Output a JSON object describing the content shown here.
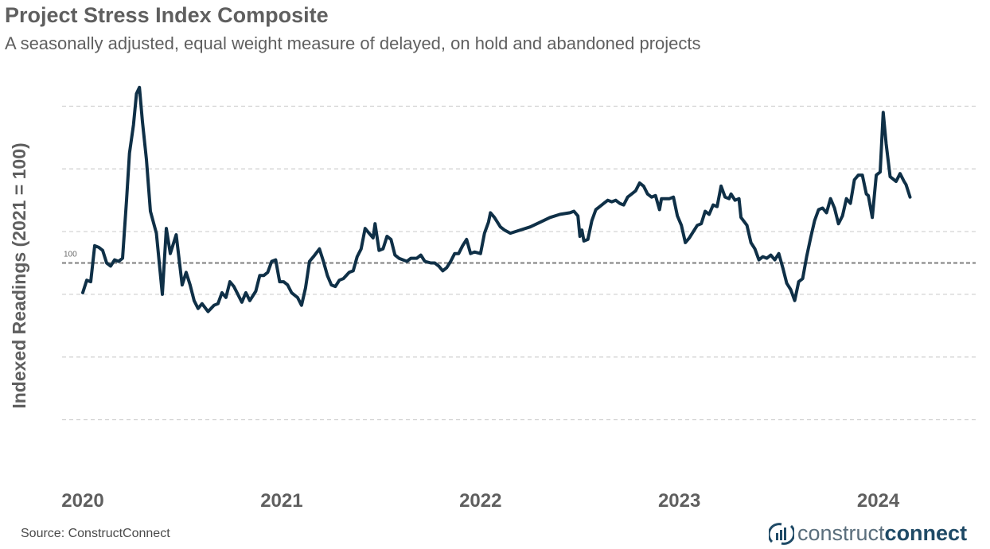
{
  "header": {
    "title": "Project Stress Index Composite",
    "subtitle": "A seasonally adjusted, equal weight measure of delayed, on hold and abandoned projects"
  },
  "footer": {
    "source": "Source: ConstructConnect",
    "logo_text_light": "construct",
    "logo_text_bold": "connect"
  },
  "colors": {
    "line": "#0f3047",
    "grid": "#cfcfcf",
    "baseline": "#8c8c8c",
    "text": "#5f5f5f"
  },
  "chart_data": {
    "type": "line",
    "ylabel": "Indexed Readings (2021 = 100)",
    "baseline_label": "100",
    "x_tick_labels": [
      "2020",
      "2021",
      "2022",
      "2023",
      "2024"
    ],
    "x_ticks": [
      2020,
      2021,
      2022,
      2023,
      2024
    ],
    "xlim": [
      2020,
      2024.45
    ],
    "ylim": [
      40,
      160
    ],
    "gridlines": [
      50,
      70,
      90,
      110,
      130,
      150
    ],
    "baseline": 100,
    "series": [
      {
        "values": [
          [
            2020.0,
            90.5
          ],
          [
            2020.02,
            94.5
          ],
          [
            2020.04,
            94.0
          ],
          [
            2020.06,
            105.5
          ],
          [
            2020.08,
            105.0
          ],
          [
            2020.1,
            104.0
          ],
          [
            2020.12,
            100.0
          ],
          [
            2020.14,
            99.0
          ],
          [
            2020.16,
            101.0
          ],
          [
            2020.18,
            100.5
          ],
          [
            2020.2,
            101.5
          ],
          [
            2020.22,
            120.0
          ],
          [
            2020.235,
            135.0
          ],
          [
            2020.255,
            144.0
          ],
          [
            2020.27,
            154.0
          ],
          [
            2020.285,
            156.0
          ],
          [
            2020.3,
            145.0
          ],
          [
            2020.32,
            133.0
          ],
          [
            2020.34,
            116.5
          ],
          [
            2020.37,
            109.5
          ],
          [
            2020.4,
            90.0
          ],
          [
            2020.42,
            111.0
          ],
          [
            2020.44,
            103.0
          ],
          [
            2020.47,
            109.0
          ],
          [
            2020.5,
            93.0
          ],
          [
            2020.52,
            97.0
          ],
          [
            2020.54,
            93.0
          ],
          [
            2020.56,
            88.0
          ],
          [
            2020.58,
            85.5
          ],
          [
            2020.6,
            87.0
          ],
          [
            2020.63,
            84.5
          ],
          [
            2020.66,
            86.5
          ],
          [
            2020.68,
            87.0
          ],
          [
            2020.7,
            90.5
          ],
          [
            2020.72,
            89.0
          ],
          [
            2020.74,
            94.0
          ],
          [
            2020.76,
            92.5
          ],
          [
            2020.8,
            87.5
          ],
          [
            2020.82,
            90.5
          ],
          [
            2020.84,
            88.0
          ],
          [
            2020.87,
            91.0
          ],
          [
            2020.89,
            96.0
          ],
          [
            2020.91,
            96.0
          ],
          [
            2020.93,
            97.0
          ],
          [
            2020.95,
            100.5
          ],
          [
            2020.97,
            101.0
          ],
          [
            2020.99,
            94.0
          ],
          [
            2021.01,
            94.0
          ],
          [
            2021.03,
            93.0
          ],
          [
            2021.05,
            90.5
          ],
          [
            2021.08,
            89.0
          ],
          [
            2021.1,
            86.5
          ],
          [
            2021.12,
            92.0
          ],
          [
            2021.14,
            100.5
          ],
          [
            2021.16,
            102.0
          ],
          [
            2021.19,
            104.5
          ],
          [
            2021.21,
            100.5
          ],
          [
            2021.23,
            96.0
          ],
          [
            2021.25,
            93.0
          ],
          [
            2021.27,
            92.5
          ],
          [
            2021.29,
            94.5
          ],
          [
            2021.31,
            95.0
          ],
          [
            2021.34,
            97.0
          ],
          [
            2021.36,
            97.5
          ],
          [
            2021.38,
            102.0
          ],
          [
            2021.4,
            104.5
          ],
          [
            2021.42,
            111.0
          ],
          [
            2021.44,
            109.5
          ],
          [
            2021.46,
            108.0
          ],
          [
            2021.47,
            112.5
          ],
          [
            2021.49,
            104.0
          ],
          [
            2021.51,
            104.5
          ],
          [
            2021.53,
            108.5
          ],
          [
            2021.55,
            107.5
          ],
          [
            2021.57,
            102.5
          ],
          [
            2021.59,
            101.5
          ],
          [
            2021.63,
            100.5
          ],
          [
            2021.65,
            101.5
          ],
          [
            2021.68,
            101.5
          ],
          [
            2021.7,
            102.5
          ],
          [
            2021.72,
            100.5
          ],
          [
            2021.75,
            100.0
          ],
          [
            2021.77,
            100.0
          ],
          [
            2021.79,
            99.0
          ],
          [
            2021.81,
            97.5
          ],
          [
            2021.83,
            98.5
          ],
          [
            2021.85,
            100.5
          ],
          [
            2021.87,
            103.0
          ],
          [
            2021.89,
            103.0
          ],
          [
            2021.91,
            105.5
          ],
          [
            2021.93,
            107.5
          ],
          [
            2021.95,
            103.0
          ],
          [
            2021.97,
            103.5
          ],
          [
            2022.0,
            103.0
          ],
          [
            2022.02,
            109.5
          ],
          [
            2022.04,
            113.0
          ],
          [
            2022.05,
            116.0
          ],
          [
            2022.07,
            114.5
          ],
          [
            2022.1,
            111.5
          ],
          [
            2022.12,
            110.5
          ],
          [
            2022.15,
            109.5
          ],
          [
            2022.2,
            110.5
          ],
          [
            2022.25,
            111.5
          ],
          [
            2022.3,
            113.0
          ],
          [
            2022.35,
            114.5
          ],
          [
            2022.4,
            115.5
          ],
          [
            2022.45,
            116.0
          ],
          [
            2022.47,
            116.5
          ],
          [
            2022.49,
            115.0
          ],
          [
            2022.5,
            108.5
          ],
          [
            2022.51,
            110.5
          ],
          [
            2022.52,
            107.0
          ],
          [
            2022.54,
            107.5
          ],
          [
            2022.56,
            113.5
          ],
          [
            2022.58,
            117.0
          ],
          [
            2022.6,
            118.0
          ],
          [
            2022.62,
            119.0
          ],
          [
            2022.64,
            120.0
          ],
          [
            2022.66,
            119.5
          ],
          [
            2022.68,
            120.0
          ],
          [
            2022.7,
            119.0
          ],
          [
            2022.72,
            118.5
          ],
          [
            2022.74,
            121.0
          ],
          [
            2022.76,
            122.0
          ],
          [
            2022.78,
            123.0
          ],
          [
            2022.8,
            125.5
          ],
          [
            2022.82,
            124.5
          ],
          [
            2022.84,
            122.0
          ],
          [
            2022.86,
            121.0
          ],
          [
            2022.88,
            121.5
          ],
          [
            2022.9,
            117.0
          ],
          [
            2022.91,
            120.5
          ],
          [
            2022.93,
            120.5
          ],
          [
            2022.95,
            120.5
          ],
          [
            2022.97,
            121.0
          ],
          [
            2022.99,
            115.0
          ],
          [
            2023.01,
            112.0
          ],
          [
            2023.03,
            106.5
          ],
          [
            2023.05,
            108.0
          ],
          [
            2023.07,
            110.0
          ],
          [
            2023.09,
            112.0
          ],
          [
            2023.11,
            112.5
          ],
          [
            2023.13,
            116.5
          ],
          [
            2023.15,
            115.5
          ],
          [
            2023.17,
            118.5
          ],
          [
            2023.19,
            118.0
          ],
          [
            2023.21,
            124.5
          ],
          [
            2023.23,
            121.0
          ],
          [
            2023.25,
            120.5
          ],
          [
            2023.26,
            122.0
          ],
          [
            2023.28,
            120.0
          ],
          [
            2023.3,
            120.5
          ],
          [
            2023.31,
            114.5
          ],
          [
            2023.34,
            112.0
          ],
          [
            2023.36,
            106.5
          ],
          [
            2023.38,
            104.5
          ],
          [
            2023.4,
            101.0
          ],
          [
            2023.42,
            102.0
          ],
          [
            2023.44,
            101.5
          ],
          [
            2023.46,
            102.5
          ],
          [
            2023.48,
            101.0
          ],
          [
            2023.5,
            103.0
          ],
          [
            2023.52,
            98.5
          ],
          [
            2023.54,
            93.5
          ],
          [
            2023.56,
            91.5
          ],
          [
            2023.58,
            88.0
          ],
          [
            2023.6,
            94.0
          ],
          [
            2023.62,
            95.0
          ],
          [
            2023.64,
            102.0
          ],
          [
            2023.66,
            108.0
          ],
          [
            2023.68,
            113.5
          ],
          [
            2023.7,
            117.0
          ],
          [
            2023.72,
            117.5
          ],
          [
            2023.74,
            116.0
          ],
          [
            2023.76,
            120.5
          ],
          [
            2023.78,
            117.5
          ],
          [
            2023.8,
            112.5
          ],
          [
            2023.82,
            115.0
          ],
          [
            2023.84,
            120.5
          ],
          [
            2023.86,
            119.0
          ],
          [
            2023.88,
            126.5
          ],
          [
            2023.9,
            128.0
          ],
          [
            2023.92,
            128.0
          ],
          [
            2023.94,
            122.0
          ],
          [
            2023.95,
            121.5
          ],
          [
            2023.97,
            114.5
          ],
          [
            2023.99,
            128.0
          ],
          [
            2024.01,
            129.0
          ],
          [
            2024.025,
            148.0
          ],
          [
            2024.04,
            138.0
          ],
          [
            2024.06,
            127.5
          ],
          [
            2024.09,
            126.0
          ],
          [
            2024.11,
            128.5
          ],
          [
            2024.13,
            126.0
          ],
          [
            2024.14,
            125.0
          ],
          [
            2024.16,
            121.0
          ]
        ]
      }
    ]
  }
}
